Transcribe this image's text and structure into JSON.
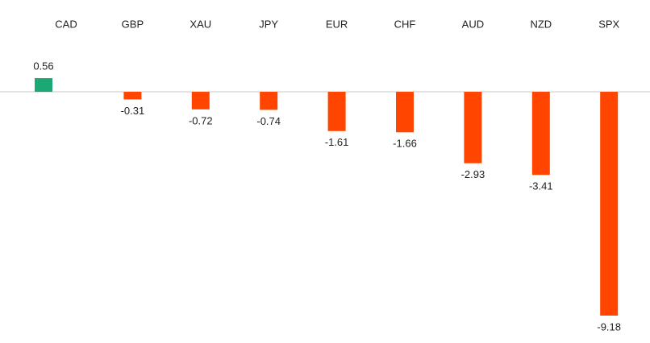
{
  "chart_data": {
    "type": "bar",
    "categories": [
      "CAD",
      "GBP",
      "XAU",
      "JPY",
      "EUR",
      "CHF",
      "AUD",
      "NZD",
      "SPX"
    ],
    "values": [
      0.56,
      -0.31,
      -0.72,
      -0.74,
      -1.61,
      -1.66,
      -2.93,
      -3.41,
      -9.18
    ],
    "colors": [
      "#1aa874",
      "#ff4500",
      "#ff4500",
      "#ff4500",
      "#ff4500",
      "#ff4500",
      "#ff4500",
      "#ff4500",
      "#ff4500"
    ],
    "ylim": [
      -10,
      3
    ]
  }
}
